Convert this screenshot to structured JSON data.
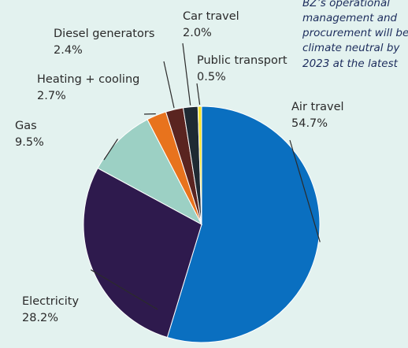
{
  "chart_data": {
    "type": "pie",
    "title": "",
    "slices": [
      {
        "label": "Air travel",
        "value": 54.7,
        "display": "54.7%",
        "color": "#0a6fc0"
      },
      {
        "label": "Electricity",
        "value": 28.2,
        "display": "28.2%",
        "color": "#2e1a4d"
      },
      {
        "label": "Gas",
        "value": 9.5,
        "display": "9.5%",
        "color": "#9cd0c4"
      },
      {
        "label": "Heating + cooling",
        "value": 2.7,
        "display": "2.7%",
        "color": "#e8731d"
      },
      {
        "label": "Diesel generators",
        "value": 2.4,
        "display": "2.4%",
        "color": "#5a2420"
      },
      {
        "label": "Car travel",
        "value": 2.0,
        "display": "2.0%",
        "color": "#1f2a33"
      },
      {
        "label": "Public transport",
        "value": 0.5,
        "display": "0.5%",
        "color": "#f7e12a"
      }
    ],
    "annotation": [
      "BZ’s operational",
      "management and",
      "procurement will be",
      "climate neutral by",
      "2023 at the latest"
    ],
    "legend": "none"
  }
}
